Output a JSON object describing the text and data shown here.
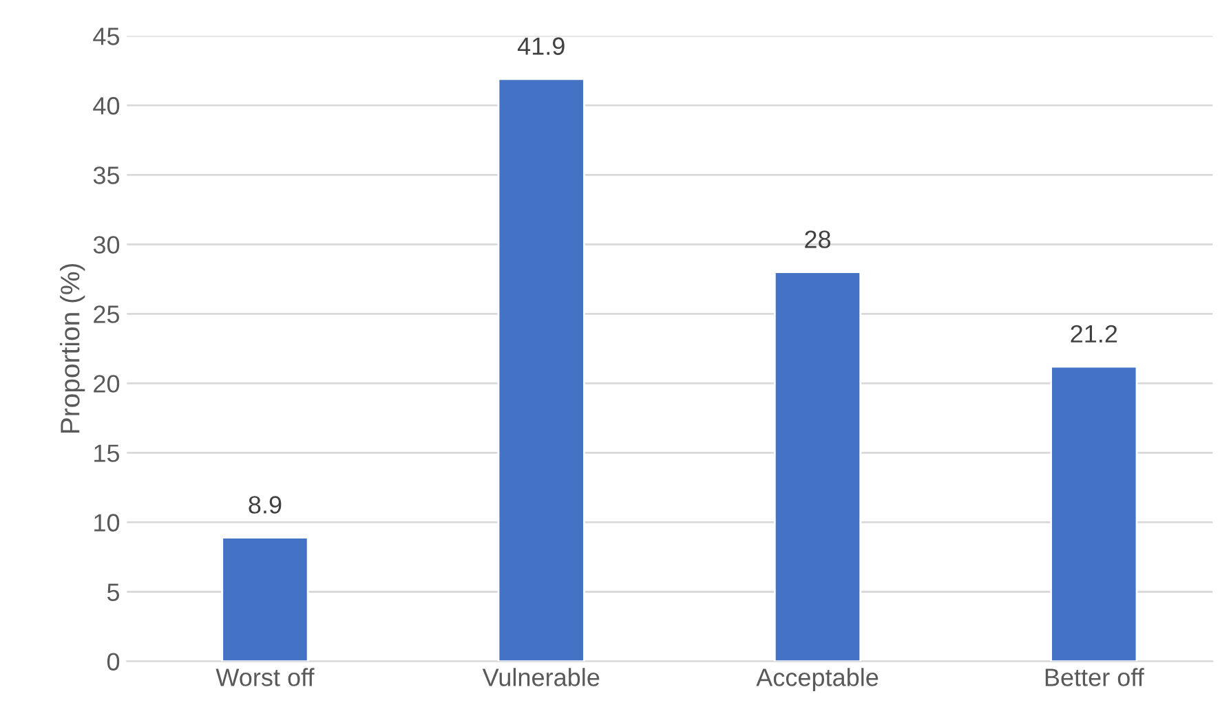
{
  "chart_data": {
    "type": "bar",
    "ylabel": "Proportion (%)",
    "categories": [
      "Worst off",
      "Vulnerable",
      "Acceptable",
      "Better off"
    ],
    "values": [
      8.9,
      41.9,
      28,
      21.2
    ],
    "color": "#4472c4",
    "ylim": [
      0,
      45
    ],
    "yticks": [
      0,
      5,
      10,
      15,
      20,
      25,
      30,
      35,
      40,
      45
    ],
    "grid": "y",
    "data_labels": true
  }
}
